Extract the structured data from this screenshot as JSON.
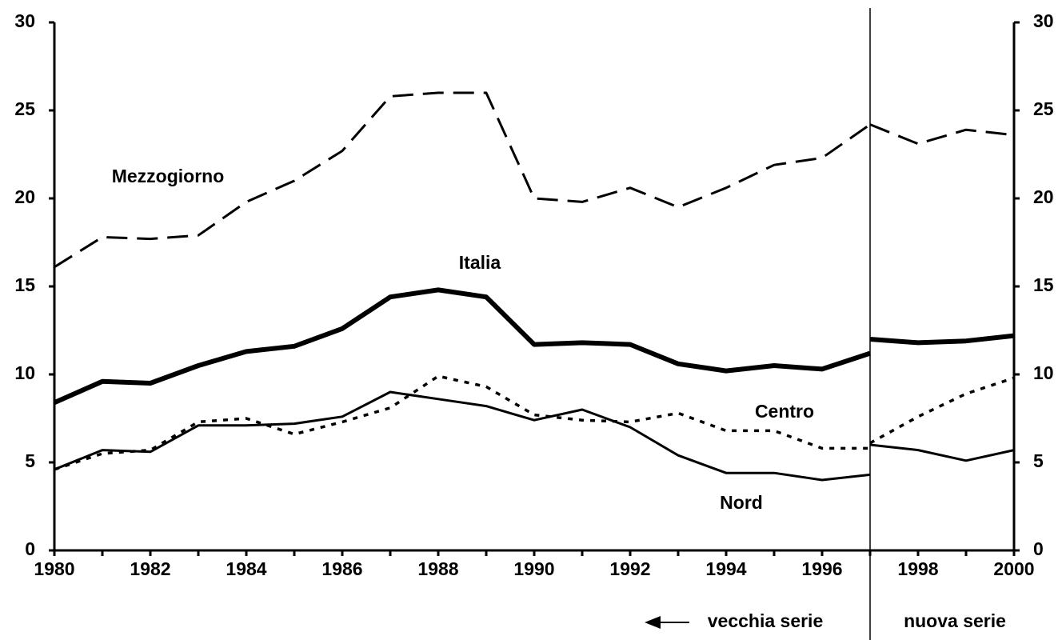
{
  "chart_data": {
    "type": "line",
    "x": [
      1980,
      1981,
      1982,
      1983,
      1984,
      1985,
      1986,
      1987,
      1988,
      1989,
      1990,
      1991,
      1992,
      1993,
      1994,
      1995,
      1996,
      1997,
      1997,
      1998,
      1999,
      2000
    ],
    "series": [
      {
        "name": "Mezzogiorno",
        "color": "#000000",
        "style": "dashed",
        "values": [
          16.1,
          17.8,
          17.7,
          17.9,
          19.8,
          21.0,
          22.7,
          25.8,
          26.0,
          26.0,
          20.0,
          19.8,
          20.6,
          19.5,
          20.6,
          21.9,
          22.3,
          24.2,
          24.2,
          23.1,
          23.9,
          23.6
        ]
      },
      {
        "name": "Italia",
        "color": "#000000",
        "style": "thick",
        "values": [
          8.4,
          9.6,
          9.5,
          10.5,
          11.3,
          11.6,
          12.6,
          14.4,
          14.8,
          14.4,
          11.7,
          11.8,
          11.7,
          10.6,
          10.2,
          10.5,
          10.3,
          11.2,
          12.0,
          11.8,
          11.9,
          12.2
        ]
      },
      {
        "name": "Centro",
        "color": "#000000",
        "style": "dotted",
        "values": [
          4.6,
          5.5,
          5.7,
          7.3,
          7.5,
          6.6,
          7.3,
          8.1,
          9.9,
          9.3,
          7.7,
          7.4,
          7.3,
          7.8,
          6.8,
          6.8,
          5.8,
          5.8,
          6.1,
          7.6,
          8.9,
          9.8
        ]
      },
      {
        "name": "Nord",
        "color": "#000000",
        "style": "solid",
        "values": [
          4.6,
          5.7,
          5.6,
          7.1,
          7.1,
          7.2,
          7.6,
          9.0,
          8.6,
          8.2,
          7.4,
          8.0,
          7.0,
          5.4,
          4.4,
          4.4,
          4.0,
          4.3,
          6.0,
          5.7,
          5.1,
          5.7
        ]
      }
    ],
    "series_break": 1997,
    "annotations": [
      "vecchia serie",
      "nuova serie"
    ],
    "xlim": [
      1980,
      2000
    ],
    "xticks": [
      1980,
      1982,
      1984,
      1986,
      1988,
      1990,
      1992,
      1994,
      1996,
      1998,
      2000
    ],
    "xticks_minor": [
      1981,
      1983,
      1985,
      1987,
      1989,
      1991,
      1993,
      1995,
      1997,
      1999
    ],
    "ylim": [
      0,
      30
    ],
    "yticks": [
      0,
      5,
      10,
      15,
      20,
      25,
      30
    ],
    "y2lim": [
      0,
      30
    ],
    "y2ticks": [
      0,
      5,
      10,
      15,
      20,
      25,
      30
    ],
    "grid": false
  }
}
